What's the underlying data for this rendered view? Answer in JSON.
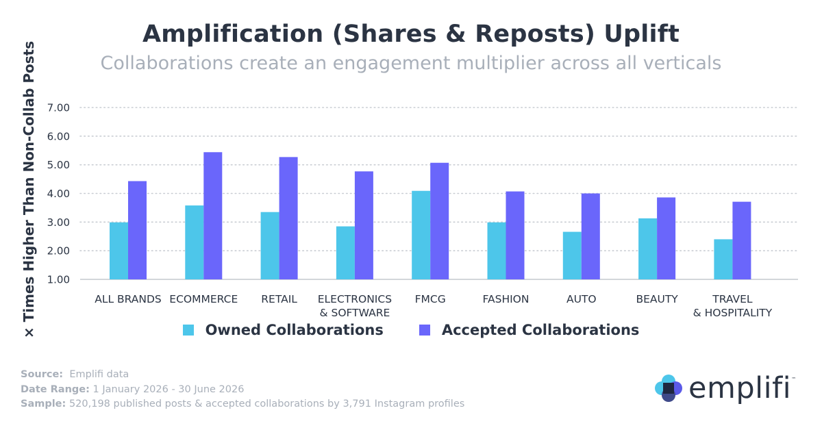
{
  "title": "Amplification (Shares & Reposts) Uplift",
  "subtitle": "Collaborations create an engagement multiplier across all verticals",
  "colors": {
    "owned": "#4dc6ea",
    "accepted": "#6a66fb",
    "text": "#2b3443",
    "muted": "#a8afb9",
    "grid": "#c9cdd3"
  },
  "chart_data": {
    "type": "bar",
    "title": "Amplification (Shares & Reposts) Uplift",
    "subtitle": "Collaborations create an engagement multiplier across all verticals",
    "xlabel": "",
    "ylabel": "× Times Higher Than Non-Collab Posts",
    "ylim": [
      1.0,
      7.0
    ],
    "yticks": [
      "1.00",
      "2.00",
      "3.00",
      "4.00",
      "5.00",
      "6.00",
      "7.00"
    ],
    "grid": true,
    "legend_position": "bottom",
    "categories": [
      "ALL BRANDS",
      "ECOMMERCE",
      "RETAIL",
      "ELECTRONICS\n& SOFTWARE",
      "FMCG",
      "FASHION",
      "AUTO",
      "BEAUTY",
      "TRAVEL\n& HOSPITALITY"
    ],
    "series": [
      {
        "name": "Owned Collaborations",
        "values": [
          2.99,
          3.58,
          3.35,
          2.85,
          4.09,
          2.99,
          2.66,
          3.13,
          2.4
        ]
      },
      {
        "name": "Accepted Collaborations",
        "values": [
          4.43,
          5.44,
          5.27,
          4.77,
          5.07,
          4.07,
          4.0,
          3.86,
          3.71
        ]
      }
    ]
  },
  "footer": {
    "source_label": "Source:",
    "source_value": "Emplifi data",
    "date_label": "Date Range:",
    "date_value": "1 January 2026 - 30 June 2026",
    "sample_label": "Sample:",
    "sample_value": "520,198 published posts & accepted collaborations by 3,791 Instagram profiles"
  },
  "logo": {
    "word": "emplifi",
    "tm": "™",
    "mark_icon": "emplifi-flower-icon"
  }
}
